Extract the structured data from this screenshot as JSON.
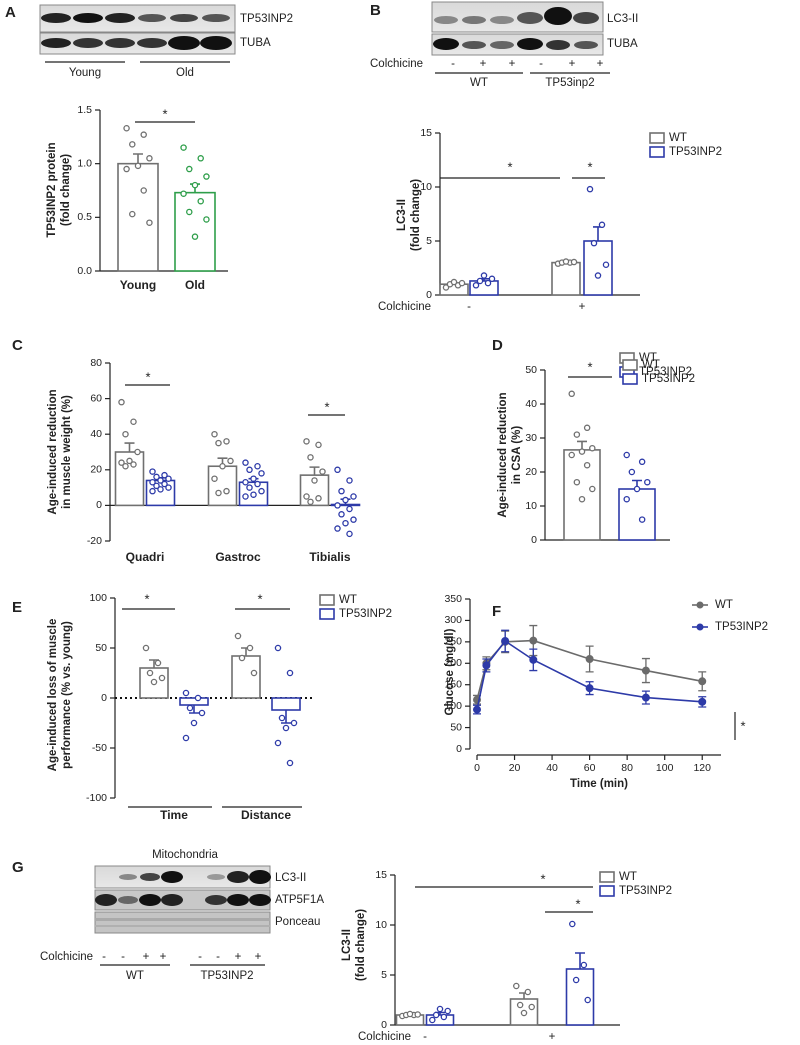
{
  "chart_data": [
    {
      "type": "bar",
      "panel": "A",
      "ylabel": [
        "TP53INP2 protein",
        "(fold change)"
      ],
      "categories": [
        "Young",
        "Old"
      ],
      "values": [
        1.0,
        0.73
      ],
      "errors": [
        0.09,
        0.08
      ],
      "colors": [
        "#707070",
        "#2e9e4a"
      ],
      "points": [
        [
          1.33,
          1.27,
          1.18,
          1.05,
          0.98,
          0.95,
          0.75,
          0.53,
          0.45
        ],
        [
          1.15,
          1.05,
          0.95,
          0.88,
          0.8,
          0.72,
          0.65,
          0.55,
          0.48,
          0.32
        ]
      ],
      "ylim": [
        0,
        1.5
      ],
      "yticks": [
        {
          "value": 0,
          "label": "0.0"
        },
        0.5,
        {
          "value": 1,
          "label": "1.0"
        },
        1.5
      ],
      "annotations": [
        "*"
      ]
    },
    {
      "type": "bar",
      "panel": "B",
      "ylabel": [
        "LC3-II",
        "(fold change)"
      ],
      "xlabel": "Colchicine",
      "categories": [
        "-",
        "+"
      ],
      "series": [
        {
          "name": "WT",
          "color": "#707070",
          "values": [
            1.0,
            3.0
          ],
          "errors": [
            0.1,
            0.05
          ],
          "points": [
            [
              0.7,
              0.9,
              1.0,
              1.1,
              1.2
            ],
            [
              2.9,
              3.0,
              3.0,
              3.05,
              3.1
            ]
          ]
        },
        {
          "name": "TP53INP2",
          "color": "#2d3aa8",
          "values": [
            1.3,
            5.0
          ],
          "errors": [
            0.2,
            1.3
          ],
          "points": [
            [
              0.9,
              1.1,
              1.3,
              1.5,
              1.8
            ],
            [
              9.8,
              6.5,
              4.8,
              2.8,
              1.8
            ]
          ]
        }
      ],
      "ylim": [
        0,
        15
      ],
      "yticks": [
        0,
        5,
        10,
        15
      ],
      "annotations": [
        "*",
        "*"
      ]
    },
    {
      "type": "bar",
      "panel": "C",
      "ylabel": [
        "Age-induced reduction",
        "in muscle weight (%)"
      ],
      "categories": [
        "Quadri",
        "Gastroc",
        "Tibialis"
      ],
      "series": [
        {
          "name": "WT",
          "color": "#707070",
          "values": [
            30,
            22,
            17
          ],
          "errors": [
            5,
            4.5,
            4.5
          ],
          "points": [
            [
              58,
              47,
              40,
              30,
              25,
              24,
              23,
              22
            ],
            [
              40,
              36,
              35,
              25,
              22,
              15,
              8,
              7
            ],
            [
              36,
              34,
              27,
              19,
              14,
              5,
              4,
              2
            ]
          ]
        },
        {
          "name": "TP53INP2",
          "color": "#2d3aa8",
          "values": [
            14,
            13,
            0.5
          ],
          "errors": [
            1.5,
            2,
            3
          ],
          "points": [
            [
              19,
              17,
              16,
              15,
              14,
              13,
              12,
              11,
              10,
              9,
              8
            ],
            [
              24,
              22,
              20,
              18,
              15,
              13,
              12,
              10,
              8,
              6,
              5
            ],
            [
              20,
              14,
              8,
              5,
              3,
              0,
              -2,
              -5,
              -8,
              -10,
              -13,
              -16
            ]
          ]
        }
      ],
      "ylim": [
        -20,
        80
      ],
      "yticks": [
        -20,
        0,
        20,
        40,
        60,
        80
      ],
      "annotations": [
        "*",
        "*"
      ]
    },
    {
      "type": "bar",
      "panel": "D",
      "ylabel": [
        "Age-induced reduction",
        "in CSA (%)"
      ],
      "categories": [
        null
      ],
      "series": [
        {
          "name": "WT",
          "color": "#707070",
          "values": [
            26.5
          ],
          "errors": [
            2.5
          ],
          "points": [
            [
              43,
              33,
              31,
              27,
              26,
              25,
              22,
              17,
              15,
              12
            ]
          ]
        },
        {
          "name": "TP53INP2",
          "color": "#2d3aa8",
          "values": [
            15
          ],
          "errors": [
            2.5
          ],
          "points": [
            [
              25,
              23,
              20,
              17,
              15,
              12,
              6
            ]
          ]
        }
      ],
      "ylim": [
        0,
        50
      ],
      "yticks": [
        0,
        10,
        20,
        30,
        40,
        50
      ],
      "annotations": [
        "*"
      ]
    },
    {
      "type": "bar",
      "panel": "E",
      "ylabel": [
        "Age-induced loss of muscle",
        "performance (% vs. young)"
      ],
      "categories": [
        "Time",
        "Distance"
      ],
      "series": [
        {
          "name": "WT",
          "color": "#707070",
          "values": [
            30,
            42
          ],
          "errors": [
            8,
            8
          ],
          "points": [
            [
              50,
              35,
              25,
              20,
              16
            ],
            [
              62,
              50,
              40,
              25
            ]
          ]
        },
        {
          "name": "TP53INP2",
          "color": "#2d3aa8",
          "values": [
            -7,
            -12
          ],
          "errors": [
            8,
            13
          ],
          "points": [
            [
              5,
              0,
              -10,
              -15,
              -25,
              -40
            ],
            [
              50,
              25,
              -20,
              -25,
              -30,
              -45,
              -65
            ]
          ]
        }
      ],
      "ylim": [
        -100,
        100
      ],
      "yticks": [
        -100,
        -50,
        0,
        50,
        100
      ],
      "annotations": [
        "*",
        "*"
      ]
    },
    {
      "type": "line",
      "panel": "F",
      "ylabel": [
        "Glucose (mg/dl)"
      ],
      "xlabel": "Time (min)",
      "x": [
        0,
        5,
        15,
        30,
        60,
        90,
        120
      ],
      "series": [
        {
          "name": "WT",
          "color": "#6b6b6b",
          "values": [
            115,
            200,
            250,
            253,
            210,
            183,
            158
          ],
          "errors": [
            10,
            15,
            25,
            35,
            30,
            28,
            22
          ]
        },
        {
          "name": "TP53INP2",
          "color": "#2d3aa8",
          "values": [
            92,
            195,
            252,
            208,
            142,
            120,
            110
          ],
          "errors": [
            10,
            15,
            25,
            25,
            15,
            15,
            12
          ]
        }
      ],
      "xlim": [
        0,
        130
      ],
      "xticks": [
        0,
        20,
        40,
        60,
        80,
        100,
        120
      ],
      "ylim": [
        0,
        350
      ],
      "yticks": [
        0,
        50,
        100,
        150,
        200,
        250,
        300,
        350
      ],
      "annotations": [
        "*"
      ]
    },
    {
      "type": "bar",
      "panel": "G",
      "ylabel": [
        "LC3-II",
        "(fold change)"
      ],
      "xlabel": "Colchicine",
      "categories": [
        "-",
        "+"
      ],
      "series": [
        {
          "name": "WT",
          "color": "#707070",
          "values": [
            1.0,
            2.6
          ],
          "errors": [
            0.05,
            0.6
          ],
          "points": [
            [
              0.9,
              1.0,
              1.0,
              1.05,
              1.1
            ],
            [
              3.9,
              3.3,
              2.0,
              1.8,
              1.2
            ]
          ]
        },
        {
          "name": "TP53INP2",
          "color": "#2d3aa8",
          "values": [
            1.0,
            5.6
          ],
          "errors": [
            0.25,
            1.6
          ],
          "points": [
            [
              0.5,
              0.8,
              1.0,
              1.4,
              1.6
            ],
            [
              10.1,
              6.0,
              4.5,
              2.5
            ]
          ]
        }
      ],
      "ylim": [
        0,
        15
      ],
      "yticks": [
        0,
        5,
        10,
        15
      ],
      "annotations": [
        "*",
        "*"
      ]
    }
  ],
  "blots": [
    {
      "bands": [
        "TP53INP2",
        "TUBA"
      ],
      "groups": [
        "Young",
        "Old"
      ]
    },
    {
      "bands": [
        "LC3-II",
        "TUBA"
      ],
      "treatment": "Colchicine",
      "signs": [
        "-",
        "+",
        "+",
        "-",
        "+",
        "+"
      ],
      "groups": [
        "WT",
        "TP53inp2"
      ]
    },
    {
      "title": "Mitochondria",
      "bands": [
        "LC3-II",
        "ATP5F1A",
        "Ponceau"
      ],
      "treatment": "Colchicine",
      "signs": [
        "-",
        "-",
        "+",
        "+",
        "-",
        "-",
        "+",
        "+"
      ],
      "groups": [
        "WT",
        "TP53INP2"
      ]
    }
  ]
}
